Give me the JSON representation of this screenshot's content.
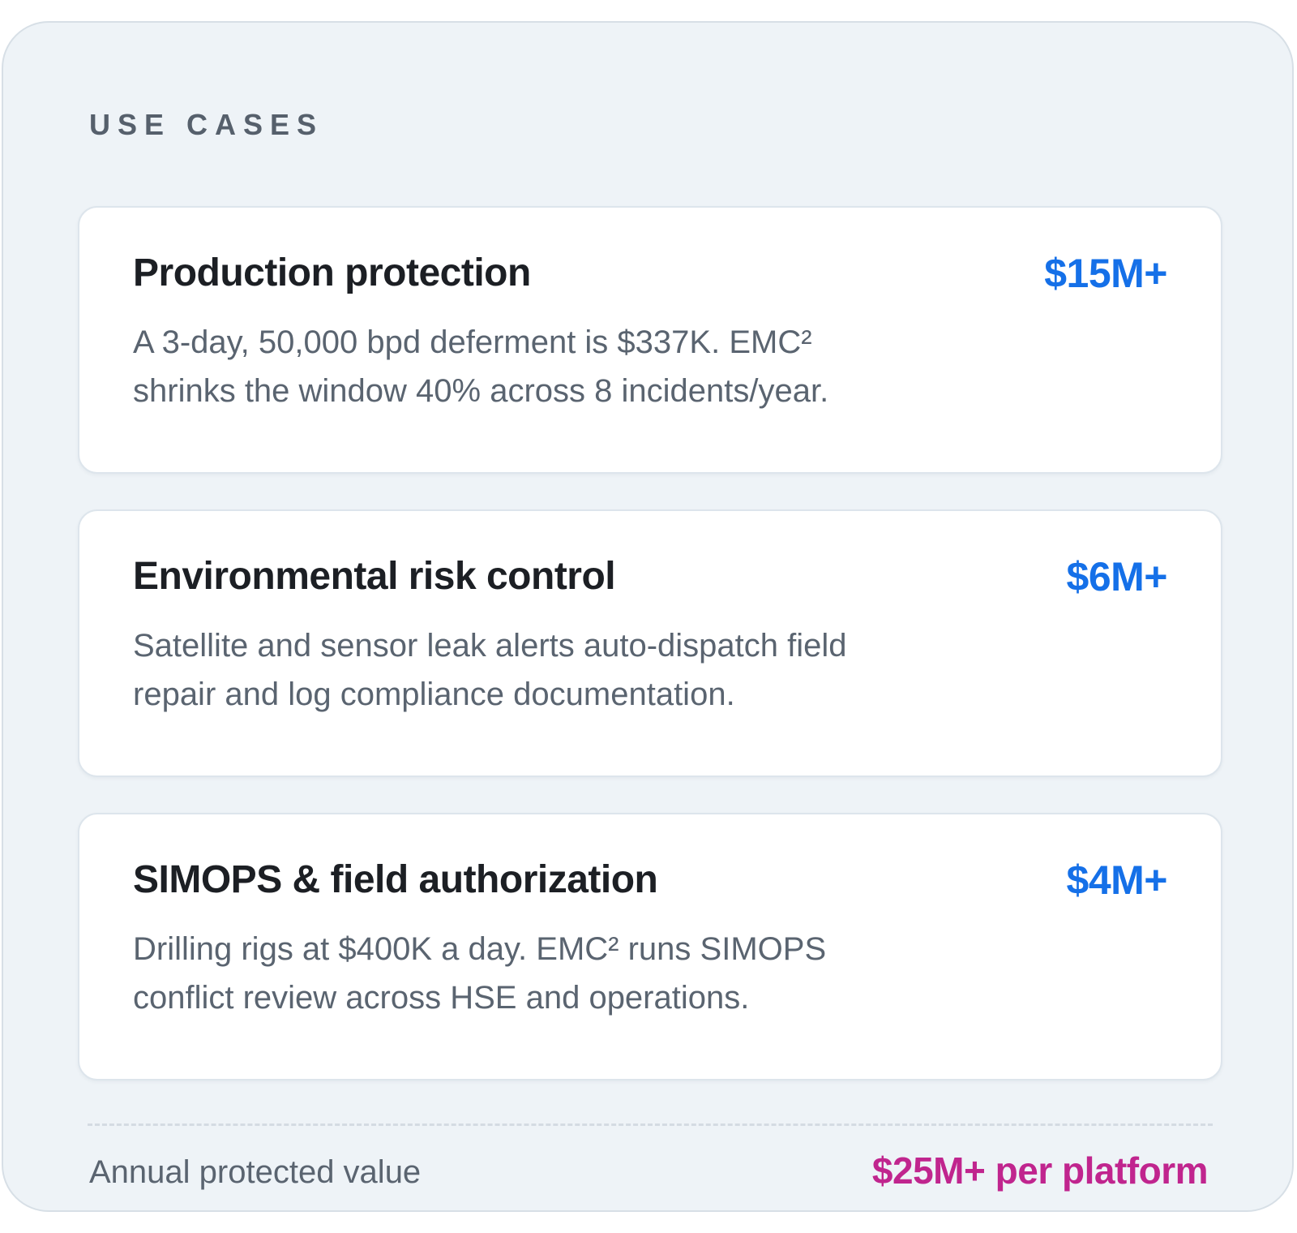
{
  "section": {
    "eyebrow": "USE CASES"
  },
  "use_cases": [
    {
      "title": "Production protection",
      "value": "$15M+",
      "description": "A 3-day, 50,000 bpd deferment is $337K. EMC² shrinks the window 40% across 8 incidents/year."
    },
    {
      "title": "Environmental risk control",
      "value": "$6M+",
      "description": "Satellite and sensor leak alerts auto-dispatch field repair and log compliance documentation."
    },
    {
      "title": "SIMOPS & field authorization",
      "value": "$4M+",
      "description": "Drilling rigs at $400K a day. EMC² runs SIMOPS conflict review across HSE and operations."
    }
  ],
  "summary": {
    "label": "Annual protected value",
    "value": "$25M+ per platform"
  },
  "colors": {
    "panel_background": "#eef3f7",
    "card_background": "#ffffff",
    "title_text": "#1c1f24",
    "body_text": "#5a6470",
    "value_accent": "#1570e8",
    "summary_accent": "#c0258e"
  }
}
